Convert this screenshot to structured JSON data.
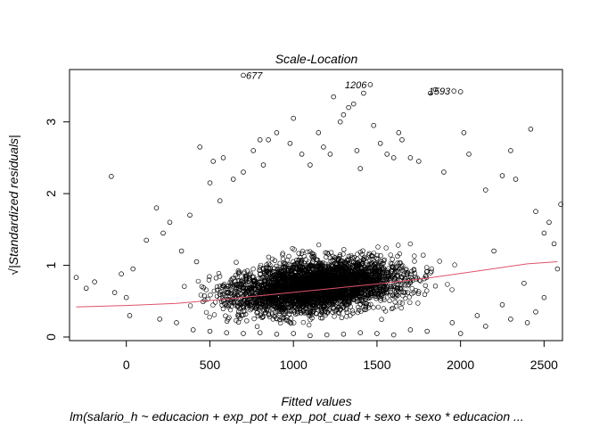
{
  "chart_data": {
    "type": "scatter",
    "title": "Scale-Location",
    "xlabel": "Fitted values",
    "subtitle": "lm(salario_h ~ educacion + exp_pot + exp_pot_cuad + sexo + sexo * educacion ...",
    "ylabel": "√|Standardized residuals|",
    "xlim": [
      -340,
      2610
    ],
    "ylim": [
      -0.05,
      3.73
    ],
    "x_ticks": [
      0,
      500,
      1000,
      1500,
      2000,
      2500
    ],
    "y_ticks": [
      0,
      1,
      2,
      3
    ],
    "grid": false,
    "point_color": "#000000",
    "smooth_color": "#DF536B",
    "smooth_line": [
      {
        "x": -300,
        "y": 0.42
      },
      {
        "x": 0,
        "y": 0.44
      },
      {
        "x": 300,
        "y": 0.47
      },
      {
        "x": 600,
        "y": 0.53
      },
      {
        "x": 900,
        "y": 0.6
      },
      {
        "x": 1200,
        "y": 0.67
      },
      {
        "x": 1500,
        "y": 0.74
      },
      {
        "x": 1800,
        "y": 0.82
      },
      {
        "x": 2100,
        "y": 0.92
      },
      {
        "x": 2400,
        "y": 1.02
      },
      {
        "x": 2580,
        "y": 1.05
      }
    ],
    "labeled_points": [
      {
        "label": "677",
        "x": 700,
        "y": 3.65
      },
      {
        "label": "1206",
        "x": 1460,
        "y": 3.52
      },
      {
        "label": "1593",
        "x": 1960,
        "y": 3.43
      }
    ],
    "points": [
      {
        "x": -300,
        "y": 0.83
      },
      {
        "x": -240,
        "y": 0.68
      },
      {
        "x": -190,
        "y": 0.77
      },
      {
        "x": -90,
        "y": 2.24
      },
      {
        "x": -70,
        "y": 0.62
      },
      {
        "x": -30,
        "y": 0.88
      },
      {
        "x": 0,
        "y": 0.55
      },
      {
        "x": 20,
        "y": 0.3
      },
      {
        "x": 40,
        "y": 0.95
      },
      {
        "x": 120,
        "y": 1.35
      },
      {
        "x": 180,
        "y": 1.8
      },
      {
        "x": 220,
        "y": 1.45
      },
      {
        "x": 260,
        "y": 1.6
      },
      {
        "x": 330,
        "y": 1.2
      },
      {
        "x": 380,
        "y": 1.7
      },
      {
        "x": 420,
        "y": 1.05
      },
      {
        "x": 440,
        "y": 2.65
      },
      {
        "x": 500,
        "y": 2.15
      },
      {
        "x": 520,
        "y": 2.45
      },
      {
        "x": 560,
        "y": 1.9
      },
      {
        "x": 580,
        "y": 2.5
      },
      {
        "x": 640,
        "y": 2.2
      },
      {
        "x": 700,
        "y": 2.3
      },
      {
        "x": 760,
        "y": 2.6
      },
      {
        "x": 800,
        "y": 2.75
      },
      {
        "x": 820,
        "y": 2.4
      },
      {
        "x": 850,
        "y": 2.75
      },
      {
        "x": 900,
        "y": 2.85
      },
      {
        "x": 980,
        "y": 2.7
      },
      {
        "x": 1000,
        "y": 3.05
      },
      {
        "x": 1050,
        "y": 2.55
      },
      {
        "x": 1100,
        "y": 2.4
      },
      {
        "x": 1150,
        "y": 2.85
      },
      {
        "x": 1180,
        "y": 2.65
      },
      {
        "x": 1220,
        "y": 2.55
      },
      {
        "x": 1240,
        "y": 3.35
      },
      {
        "x": 1280,
        "y": 3.0
      },
      {
        "x": 1300,
        "y": 3.1
      },
      {
        "x": 1330,
        "y": 3.2
      },
      {
        "x": 1360,
        "y": 3.25
      },
      {
        "x": 1380,
        "y": 2.6
      },
      {
        "x": 1400,
        "y": 2.35
      },
      {
        "x": 1420,
        "y": 3.4
      },
      {
        "x": 1480,
        "y": 2.95
      },
      {
        "x": 1520,
        "y": 2.7
      },
      {
        "x": 1560,
        "y": 2.55
      },
      {
        "x": 1600,
        "y": 2.5
      },
      {
        "x": 1630,
        "y": 2.85
      },
      {
        "x": 1650,
        "y": 2.75
      },
      {
        "x": 1700,
        "y": 2.5
      },
      {
        "x": 1750,
        "y": 2.45
      },
      {
        "x": 1820,
        "y": 3.4
      },
      {
        "x": 1850,
        "y": 3.45
      },
      {
        "x": 1900,
        "y": 2.3
      },
      {
        "x": 2000,
        "y": 3.42
      },
      {
        "x": 2020,
        "y": 2.85
      },
      {
        "x": 2050,
        "y": 2.55
      },
      {
        "x": 2150,
        "y": 2.05
      },
      {
        "x": 2250,
        "y": 2.25
      },
      {
        "x": 2300,
        "y": 2.6
      },
      {
        "x": 2330,
        "y": 2.2
      },
      {
        "x": 2420,
        "y": 2.9
      },
      {
        "x": 2450,
        "y": 1.75
      },
      {
        "x": 2500,
        "y": 1.45
      },
      {
        "x": 2530,
        "y": 1.6
      },
      {
        "x": 2560,
        "y": 1.3
      },
      {
        "x": 2600,
        "y": 1.85
      },
      {
        "x": 2580,
        "y": 0.95
      },
      {
        "x": 2500,
        "y": 0.55
      },
      {
        "x": 2450,
        "y": 0.35
      },
      {
        "x": 2400,
        "y": 0.2
      },
      {
        "x": 2380,
        "y": 0.75
      },
      {
        "x": 2300,
        "y": 0.25
      },
      {
        "x": 2250,
        "y": 0.45
      },
      {
        "x": 2200,
        "y": 1.2
      },
      {
        "x": 2150,
        "y": 0.15
      },
      {
        "x": 2100,
        "y": 0.3
      },
      {
        "x": 2000,
        "y": 0.05
      },
      {
        "x": 1950,
        "y": 0.2
      },
      {
        "x": 1800,
        "y": 0.08
      },
      {
        "x": 1700,
        "y": 0.1
      },
      {
        "x": 1600,
        "y": 0.03
      },
      {
        "x": 1500,
        "y": 0.05
      },
      {
        "x": 1400,
        "y": 0.06
      },
      {
        "x": 1300,
        "y": 0.04
      },
      {
        "x": 1200,
        "y": 0.03
      },
      {
        "x": 1100,
        "y": 0.02
      },
      {
        "x": 1000,
        "y": 0.05
      },
      {
        "x": 900,
        "y": 0.04
      },
      {
        "x": 800,
        "y": 0.06
      },
      {
        "x": 700,
        "y": 0.05
      },
      {
        "x": 600,
        "y": 0.06
      },
      {
        "x": 500,
        "y": 0.08
      },
      {
        "x": 400,
        "y": 0.1
      },
      {
        "x": 300,
        "y": 0.2
      },
      {
        "x": 200,
        "y": 0.25
      }
    ]
  }
}
